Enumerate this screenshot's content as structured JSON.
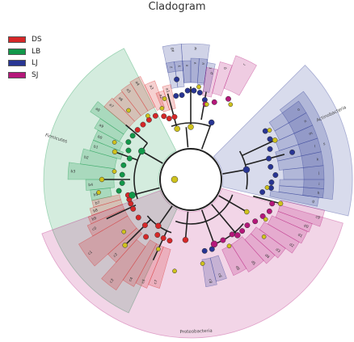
{
  "chart_data": {
    "type": "cladogram",
    "title": "Cladogram",
    "legend": [
      {
        "name": "DS",
        "color": "#d62728"
      },
      {
        "name": "LB",
        "color": "#12984a"
      },
      {
        "name": "LJ",
        "color": "#283593"
      },
      {
        "name": "SJ",
        "color": "#b5177a"
      }
    ],
    "phyla": [
      {
        "label": "Firmicutes",
        "group": "LB"
      },
      {
        "label": "Actinobacteria",
        "group": "LJ"
      },
      {
        "label": "Proteobacteria",
        "group": "SJ"
      }
    ],
    "clades": [
      {
        "label": "a0",
        "group": "LJ"
      },
      {
        "label": "w",
        "group": "LJ"
      },
      {
        "label": "z",
        "group": "LJ"
      },
      {
        "label": "y",
        "group": "LJ"
      },
      {
        "label": "x",
        "group": "LJ"
      },
      {
        "label": "v",
        "group": "LJ"
      },
      {
        "label": "u",
        "group": "LJ"
      },
      {
        "label": "t",
        "group": "LJ"
      },
      {
        "label": "r",
        "group": "SJ"
      },
      {
        "label": "q",
        "group": "SJ"
      },
      {
        "label": "p",
        "group": "SJ"
      },
      {
        "label": "s",
        "group": "LJ"
      },
      {
        "label": "o",
        "group": "LJ"
      },
      {
        "label": "n",
        "group": "LJ"
      },
      {
        "label": "m",
        "group": "LJ"
      },
      {
        "label": "l",
        "group": "LJ"
      },
      {
        "label": "k",
        "group": "LJ"
      },
      {
        "label": "j",
        "group": "LJ"
      },
      {
        "label": "i",
        "group": "LJ"
      },
      {
        "label": "h",
        "group": "LJ"
      },
      {
        "label": "g",
        "group": "LJ"
      },
      {
        "label": "c9",
        "group": "SJ"
      },
      {
        "label": "d0",
        "group": "SJ"
      },
      {
        "label": "d1",
        "group": "SJ"
      },
      {
        "label": "d2",
        "group": "SJ"
      },
      {
        "label": "d3",
        "group": "SJ"
      },
      {
        "label": "d4",
        "group": "SJ"
      },
      {
        "label": "d5",
        "group": "SJ"
      },
      {
        "label": "d6",
        "group": "SJ"
      },
      {
        "label": "c8",
        "group": "LJ"
      },
      {
        "label": "c6",
        "group": "LJ"
      },
      {
        "label": "c7",
        "group": "DS"
      },
      {
        "label": "c5",
        "group": "DS"
      },
      {
        "label": "c4",
        "group": "DS"
      },
      {
        "label": "c3",
        "group": "DS"
      },
      {
        "label": "c2",
        "group": "DS"
      },
      {
        "label": "c1",
        "group": "DS"
      },
      {
        "label": "c0",
        "group": "DS"
      },
      {
        "label": "b9",
        "group": "DS"
      },
      {
        "label": "b8",
        "group": "DS"
      },
      {
        "label": "b7",
        "group": "DS"
      },
      {
        "label": "b5",
        "group": "LB"
      },
      {
        "label": "b4",
        "group": "LB"
      },
      {
        "label": "b3",
        "group": "LB"
      },
      {
        "label": "b2",
        "group": "LB"
      },
      {
        "label": "b1",
        "group": "LB"
      },
      {
        "label": "b0",
        "group": "LB"
      },
      {
        "label": "a9",
        "group": "LB"
      },
      {
        "label": "a8",
        "group": "LB"
      },
      {
        "label": "a7",
        "group": "DS"
      },
      {
        "label": "a6",
        "group": "DS"
      },
      {
        "label": "a5",
        "group": "DS"
      },
      {
        "label": "a4",
        "group": "DS"
      },
      {
        "label": "a3",
        "group": "DS"
      },
      {
        "label": "a2",
        "group": "DS"
      },
      {
        "label": "a1",
        "group": "DS"
      }
    ]
  }
}
